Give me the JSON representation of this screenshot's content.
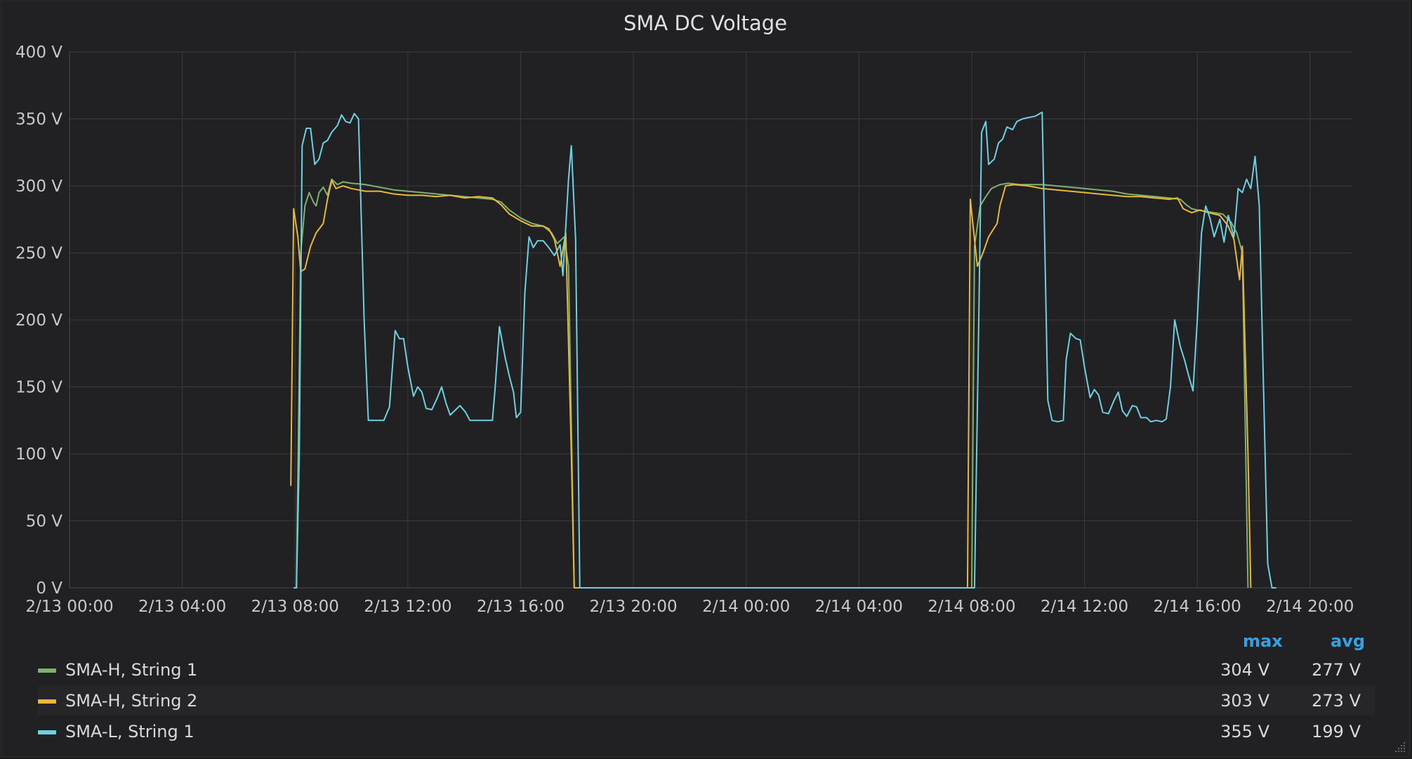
{
  "panel": {
    "title": "SMA DC Voltage"
  },
  "legend": {
    "headers": {
      "max": "max",
      "avg": "avg"
    },
    "rows": [
      {
        "label": "SMA-H, String 1",
        "max": "304 V",
        "avg": "277 V",
        "color": "#7eb26d"
      },
      {
        "label": "SMA-H, String 2",
        "max": "303 V",
        "avg": "273 V",
        "color": "#eab839"
      },
      {
        "label": "SMA-L, String 1",
        "max": "355 V",
        "avg": "199 V",
        "color": "#6ed0e0"
      }
    ]
  },
  "chart_data": {
    "type": "line",
    "title": "SMA DC Voltage",
    "xlabel": "",
    "ylabel": "",
    "grid": true,
    "legend_position": "bottom",
    "x_unit": "hours since 2/13 00:00",
    "xlim": [
      0,
      45.5
    ],
    "ylim": [
      0,
      400
    ],
    "x_ticks": [
      {
        "label": "2/13 00:00",
        "value": 0
      },
      {
        "label": "2/13 04:00",
        "value": 4
      },
      {
        "label": "2/13 08:00",
        "value": 8
      },
      {
        "label": "2/13 12:00",
        "value": 12
      },
      {
        "label": "2/13 16:00",
        "value": 16
      },
      {
        "label": "2/13 20:00",
        "value": 20
      },
      {
        "label": "2/14 00:00",
        "value": 24
      },
      {
        "label": "2/14 04:00",
        "value": 28
      },
      {
        "label": "2/14 08:00",
        "value": 32
      },
      {
        "label": "2/14 12:00",
        "value": 36
      },
      {
        "label": "2/14 16:00",
        "value": 40
      },
      {
        "label": "2/14 20:00",
        "value": 44
      }
    ],
    "y_ticks": [
      {
        "label": "0 V",
        "value": 0
      },
      {
        "label": "50 V",
        "value": 50
      },
      {
        "label": "100 V",
        "value": 100
      },
      {
        "label": "150 V",
        "value": 150
      },
      {
        "label": "200 V",
        "value": 200
      },
      {
        "label": "250 V",
        "value": 250
      },
      {
        "label": "300 V",
        "value": 300
      },
      {
        "label": "350 V",
        "value": 350
      },
      {
        "label": "400 V",
        "value": 400
      }
    ],
    "series": [
      {
        "name": "SMA-H, String 1",
        "color": "#7eb26d",
        "points": [
          [
            8.05,
            0
          ],
          [
            8.2,
            250
          ],
          [
            8.35,
            285
          ],
          [
            8.5,
            295
          ],
          [
            8.65,
            288
          ],
          [
            8.75,
            285
          ],
          [
            8.85,
            295
          ],
          [
            9.0,
            299
          ],
          [
            9.15,
            293
          ],
          [
            9.3,
            305
          ],
          [
            9.5,
            301
          ],
          [
            9.7,
            303
          ],
          [
            10.0,
            302
          ],
          [
            10.5,
            301
          ],
          [
            11.0,
            299
          ],
          [
            11.5,
            297
          ],
          [
            12.0,
            296
          ],
          [
            12.5,
            295
          ],
          [
            13.0,
            294
          ],
          [
            13.5,
            293
          ],
          [
            14.0,
            292
          ],
          [
            14.5,
            291
          ],
          [
            15.0,
            290
          ],
          [
            15.3,
            288
          ],
          [
            15.6,
            282
          ],
          [
            16.0,
            276
          ],
          [
            16.4,
            272
          ],
          [
            16.8,
            270
          ],
          [
            17.1,
            265
          ],
          [
            17.3,
            257
          ],
          [
            17.55,
            262
          ],
          [
            17.7,
            240
          ],
          [
            17.9,
            0
          ],
          [
            32.0,
            0
          ],
          [
            32.1,
            255
          ],
          [
            32.3,
            285
          ],
          [
            32.5,
            292
          ],
          [
            32.7,
            298
          ],
          [
            33.0,
            301
          ],
          [
            33.3,
            302
          ],
          [
            33.7,
            301
          ],
          [
            34.0,
            301
          ],
          [
            34.5,
            301
          ],
          [
            35.0,
            300
          ],
          [
            35.5,
            299
          ],
          [
            36.0,
            298
          ],
          [
            36.5,
            297
          ],
          [
            37.0,
            296
          ],
          [
            37.5,
            294
          ],
          [
            38.0,
            293
          ],
          [
            38.5,
            292
          ],
          [
            39.0,
            291
          ],
          [
            39.4,
            290
          ],
          [
            39.6,
            286
          ],
          [
            39.8,
            283
          ],
          [
            40.0,
            282
          ],
          [
            40.3,
            281
          ],
          [
            40.6,
            280
          ],
          [
            40.9,
            279
          ],
          [
            41.2,
            273
          ],
          [
            41.4,
            265
          ],
          [
            41.6,
            250
          ],
          [
            41.8,
            0
          ]
        ]
      },
      {
        "name": "SMA-H, String 2",
        "color": "#eab839",
        "points": [
          [
            7.85,
            76
          ],
          [
            7.95,
            283
          ],
          [
            8.1,
            262
          ],
          [
            8.2,
            236
          ],
          [
            8.35,
            238
          ],
          [
            8.55,
            255
          ],
          [
            8.75,
            265
          ],
          [
            9.0,
            272
          ],
          [
            9.15,
            290
          ],
          [
            9.3,
            304
          ],
          [
            9.45,
            298
          ],
          [
            9.7,
            300
          ],
          [
            10.0,
            298
          ],
          [
            10.5,
            296
          ],
          [
            11.0,
            296
          ],
          [
            11.5,
            294
          ],
          [
            12.0,
            293
          ],
          [
            12.5,
            293
          ],
          [
            13.0,
            292
          ],
          [
            13.5,
            293
          ],
          [
            14.0,
            291
          ],
          [
            14.5,
            292
          ],
          [
            15.0,
            291
          ],
          [
            15.3,
            286
          ],
          [
            15.6,
            279
          ],
          [
            16.0,
            274
          ],
          [
            16.4,
            270
          ],
          [
            16.8,
            270
          ],
          [
            17.0,
            268
          ],
          [
            17.2,
            260
          ],
          [
            17.4,
            240
          ],
          [
            17.6,
            265
          ],
          [
            17.8,
            100
          ],
          [
            17.9,
            0
          ],
          [
            31.85,
            0
          ],
          [
            31.95,
            290
          ],
          [
            32.1,
            260
          ],
          [
            32.2,
            240
          ],
          [
            32.4,
            250
          ],
          [
            32.6,
            262
          ],
          [
            32.9,
            272
          ],
          [
            33.0,
            285
          ],
          [
            33.2,
            300
          ],
          [
            33.5,
            301
          ],
          [
            34.0,
            300
          ],
          [
            34.5,
            298
          ],
          [
            35.0,
            297
          ],
          [
            35.5,
            296
          ],
          [
            36.0,
            295
          ],
          [
            36.5,
            294
          ],
          [
            37.0,
            293
          ],
          [
            37.5,
            292
          ],
          [
            38.0,
            292
          ],
          [
            38.5,
            291
          ],
          [
            39.0,
            290
          ],
          [
            39.3,
            291
          ],
          [
            39.5,
            283
          ],
          [
            39.8,
            280
          ],
          [
            40.1,
            282
          ],
          [
            40.4,
            280
          ],
          [
            40.8,
            278
          ],
          [
            41.1,
            270
          ],
          [
            41.3,
            260
          ],
          [
            41.5,
            230
          ],
          [
            41.6,
            255
          ],
          [
            41.8,
            100
          ],
          [
            41.9,
            0
          ]
        ]
      },
      {
        "name": "SMA-L, String 1",
        "color": "#6ed0e0",
        "points": [
          [
            7.95,
            0
          ],
          [
            8.05,
            0
          ],
          [
            8.15,
            100
          ],
          [
            8.25,
            330
          ],
          [
            8.4,
            343
          ],
          [
            8.55,
            343
          ],
          [
            8.7,
            316
          ],
          [
            8.85,
            320
          ],
          [
            9.0,
            332
          ],
          [
            9.15,
            334
          ],
          [
            9.3,
            340
          ],
          [
            9.5,
            345
          ],
          [
            9.65,
            353
          ],
          [
            9.8,
            348
          ],
          [
            9.95,
            347
          ],
          [
            10.1,
            354
          ],
          [
            10.25,
            350
          ],
          [
            10.45,
            200
          ],
          [
            10.6,
            125
          ],
          [
            10.9,
            125
          ],
          [
            11.15,
            125
          ],
          [
            11.35,
            135
          ],
          [
            11.55,
            192
          ],
          [
            11.7,
            186
          ],
          [
            11.85,
            186
          ],
          [
            12.0,
            165
          ],
          [
            12.2,
            143
          ],
          [
            12.35,
            150
          ],
          [
            12.5,
            146
          ],
          [
            12.65,
            134
          ],
          [
            12.85,
            133
          ],
          [
            13.05,
            142
          ],
          [
            13.2,
            150
          ],
          [
            13.35,
            138
          ],
          [
            13.5,
            129
          ],
          [
            13.7,
            133
          ],
          [
            13.85,
            136
          ],
          [
            14.05,
            131
          ],
          [
            14.2,
            125
          ],
          [
            14.4,
            125
          ],
          [
            14.8,
            125
          ],
          [
            15.0,
            125
          ],
          [
            15.1,
            150
          ],
          [
            15.25,
            195
          ],
          [
            15.45,
            172
          ],
          [
            15.6,
            158
          ],
          [
            15.75,
            146
          ],
          [
            15.85,
            127
          ],
          [
            16.0,
            131
          ],
          [
            16.15,
            220
          ],
          [
            16.3,
            262
          ],
          [
            16.45,
            254
          ],
          [
            16.6,
            259
          ],
          [
            16.8,
            259
          ],
          [
            17.0,
            254
          ],
          [
            17.2,
            248
          ],
          [
            17.4,
            256
          ],
          [
            17.5,
            233
          ],
          [
            17.7,
            305
          ],
          [
            17.8,
            330
          ],
          [
            17.95,
            260
          ],
          [
            18.1,
            0
          ],
          [
            18.2,
            0
          ],
          [
            31.95,
            0
          ],
          [
            32.1,
            0
          ],
          [
            32.25,
            200
          ],
          [
            32.35,
            340
          ],
          [
            32.5,
            348
          ],
          [
            32.6,
            316
          ],
          [
            32.8,
            320
          ],
          [
            32.95,
            332
          ],
          [
            33.1,
            335
          ],
          [
            33.25,
            344
          ],
          [
            33.45,
            342
          ],
          [
            33.6,
            348
          ],
          [
            33.8,
            350
          ],
          [
            34.0,
            351
          ],
          [
            34.25,
            352
          ],
          [
            34.5,
            355
          ],
          [
            34.7,
            140
          ],
          [
            34.85,
            125
          ],
          [
            35.05,
            124
          ],
          [
            35.25,
            125
          ],
          [
            35.35,
            170
          ],
          [
            35.5,
            190
          ],
          [
            35.7,
            186
          ],
          [
            35.85,
            185
          ],
          [
            36.0,
            165
          ],
          [
            36.2,
            142
          ],
          [
            36.35,
            148
          ],
          [
            36.5,
            144
          ],
          [
            36.65,
            131
          ],
          [
            36.85,
            130
          ],
          [
            37.05,
            140
          ],
          [
            37.2,
            146
          ],
          [
            37.35,
            132
          ],
          [
            37.5,
            128
          ],
          [
            37.7,
            136
          ],
          [
            37.85,
            135
          ],
          [
            38.0,
            127
          ],
          [
            38.2,
            127
          ],
          [
            38.35,
            124
          ],
          [
            38.55,
            125
          ],
          [
            38.75,
            124
          ],
          [
            38.9,
            126
          ],
          [
            39.05,
            150
          ],
          [
            39.2,
            200
          ],
          [
            39.4,
            180
          ],
          [
            39.55,
            170
          ],
          [
            39.7,
            158
          ],
          [
            39.85,
            147
          ],
          [
            40.0,
            200
          ],
          [
            40.15,
            265
          ],
          [
            40.3,
            285
          ],
          [
            40.45,
            276
          ],
          [
            40.6,
            262
          ],
          [
            40.8,
            275
          ],
          [
            40.95,
            258
          ],
          [
            41.1,
            278
          ],
          [
            41.3,
            262
          ],
          [
            41.45,
            298
          ],
          [
            41.6,
            295
          ],
          [
            41.75,
            305
          ],
          [
            41.9,
            298
          ],
          [
            42.05,
            322
          ],
          [
            42.2,
            285
          ],
          [
            42.35,
            150
          ],
          [
            42.5,
            18
          ],
          [
            42.65,
            0
          ],
          [
            42.8,
            0
          ]
        ]
      }
    ]
  }
}
